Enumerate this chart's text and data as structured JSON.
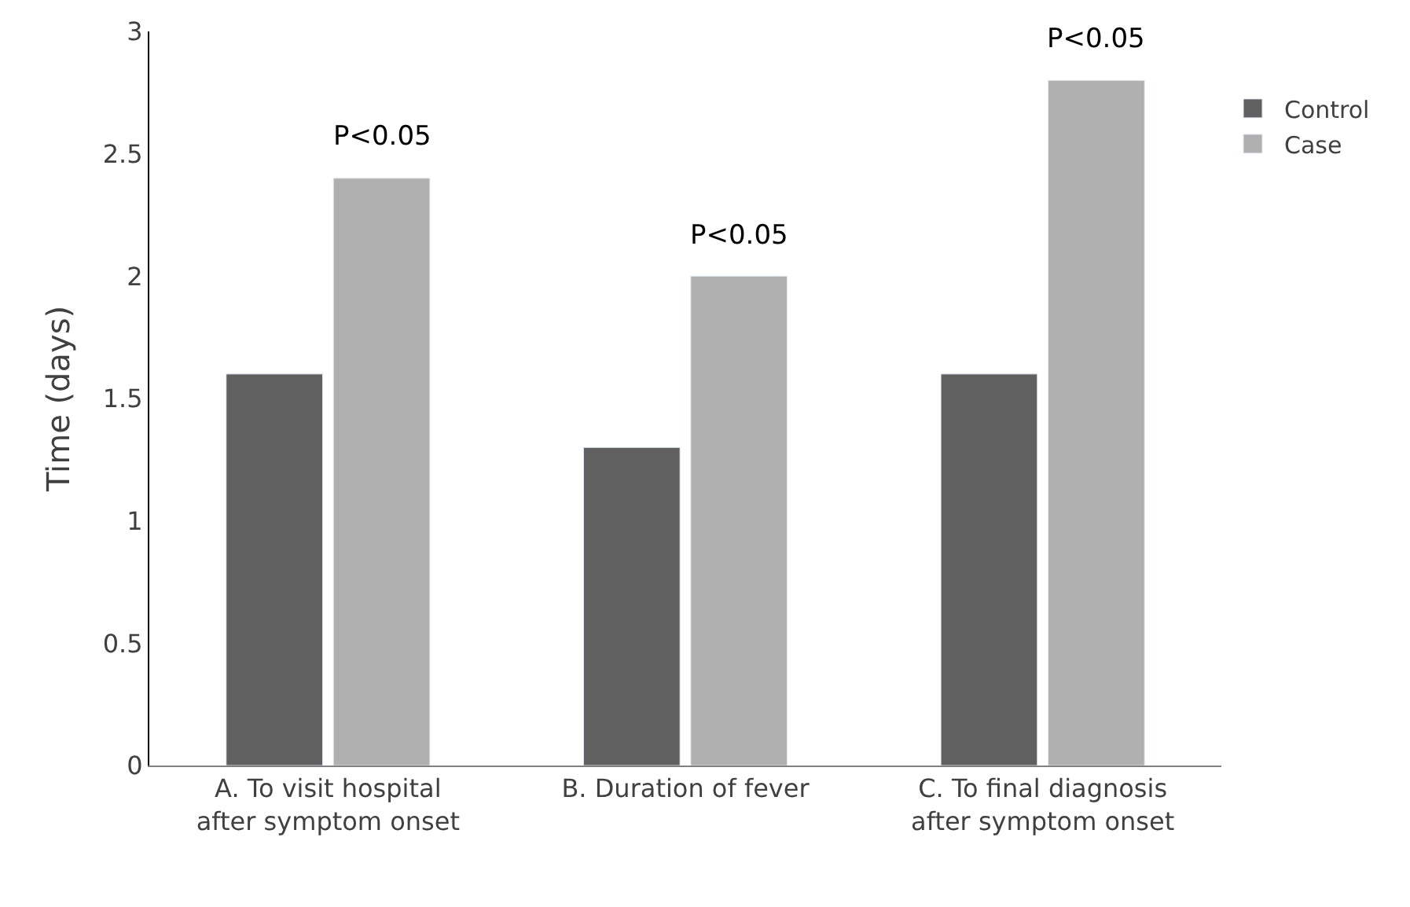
{
  "chart_data": {
    "type": "bar",
    "ylabel": "Time (days)",
    "categories": [
      "A. To visit hospital\nafter symptom onset",
      "B. Duration of fever",
      "C. To final diagnosis\nafter symptom onset"
    ],
    "series": [
      {
        "name": "Control",
        "color": "#606060",
        "values": [
          1.6,
          1.3,
          1.6
        ]
      },
      {
        "name": "Case",
        "color": "#b0b0b0",
        "values": [
          2.4,
          2.0,
          2.8
        ]
      }
    ],
    "ylim": [
      0,
      3
    ],
    "yticks": [
      0,
      0.5,
      1,
      1.5,
      2,
      2.5,
      3
    ],
    "legend": "top right",
    "annotations": [
      {
        "text": "P<0.05",
        "x": "A. To visit hospital\nafter symptom onset",
        "y": 2.4
      },
      {
        "text": "P<0.05",
        "x": "B. Duration of fever",
        "y": 2.0
      },
      {
        "text": "P<0.05",
        "x": "C. To final diagnosis\nafter symptom onset",
        "y": 2.8
      }
    ]
  }
}
